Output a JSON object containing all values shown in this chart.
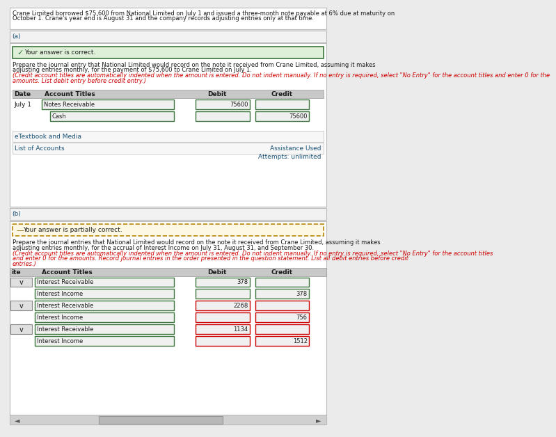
{
  "header_text_line1": "Crane Limited borrowed $75,600 from National Limited on July 1 and issued a three-month note payable at 6% due at maturity on",
  "header_text_line2": "October 1. Crane's year end is August 31 and the company records adjusting entries only at that time.",
  "section_a_label": "(a)",
  "section_b_label": "(b)",
  "correct_msg": "Your answer is correct.",
  "partial_msg": "Your answer is partially correct.",
  "part_a_instr_black": "Prepare the journal entry that National Limited would record on the note it received from Crane Limited, assuming it makes",
  "part_a_instr_black2": "adjusting entries monthly, for the payment of $75,600 to Crane Limited on July 1. ",
  "part_a_instr_red": "(Credit account titles are automatically indented when the amount is entered. Do not indent manually. If no entry is required, select \"No Entry\" for the account titles and enter 0 for the",
  "part_a_instr_red2": "amounts. List debit entry before credit entry.)",
  "part_b_instr_black": "Prepare the journal entries that National Limited would record on the note it received from Crane Limited, assuming it makes",
  "part_b_instr_black2": "adjusting entries monthly, for the accrual of Interest Income on July 31, August 31, and September 30. ",
  "part_b_instr_red": "(Credit account titles are automatically indented when the amount is entered. Do not indent manually. If no entry is required, select \"No Entry\" for the account titles",
  "part_b_instr_red2": "and enter 0 for the amounts. Record journal entries in the order presented in the question statement. List all debit entries before credit",
  "part_b_instr_red3": "entries.)",
  "etextbook_label": "eTextbook and Media",
  "list_accounts_label": "List of Accounts",
  "assistance_label": "Assistance Used",
  "attempts_label": "Attempts: unlimited",
  "bg_color": "#ebebeb",
  "panel_color": "#ffffff",
  "section_bg": "#f2f2f2",
  "correct_bg": "#dff0d8",
  "correct_border": "#3c763d",
  "partial_bg": "#fcf8e3",
  "partial_border": "#b8860b",
  "table_header_bg": "#c8c8c8",
  "input_bg_light": "#f0f0f0",
  "green_border": "#3c763d",
  "red_border": "#cc0000",
  "text_color": "#1a1a1a",
  "link_color": "#1a5276",
  "red_text_color": "#cc0000",
  "fs": 6.5,
  "fs_sm": 6.0
}
